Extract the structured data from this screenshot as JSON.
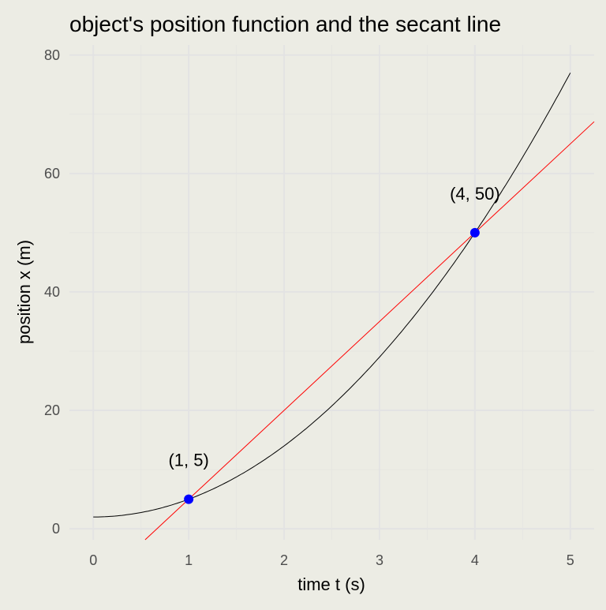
{
  "chart_data": {
    "type": "line",
    "title": "object's position function and the secant line",
    "xlabel": "time t (s)",
    "ylabel": "position x (m)",
    "xlim": [
      -0.25,
      5.25
    ],
    "ylim": [
      -1.85,
      81.7
    ],
    "x_ticks": [
      0,
      1,
      2,
      3,
      4,
      5
    ],
    "y_ticks": [
      0,
      20,
      40,
      60,
      80
    ],
    "grid": true,
    "series": [
      {
        "kind": "curve",
        "function": "x(t) = 3t^2 + 2",
        "t_range": [
          0,
          5
        ],
        "color": "#000000"
      },
      {
        "kind": "secant",
        "function": "x(t) = 15t - 10",
        "color": "#FF0000"
      }
    ],
    "points": [
      {
        "x": 1,
        "y": 5,
        "label": "(1, 5)",
        "color": "#0000FF"
      },
      {
        "x": 4,
        "y": 50,
        "label": "(4, 50)",
        "color": "#0000FF"
      }
    ],
    "background": "#ECECE4"
  }
}
